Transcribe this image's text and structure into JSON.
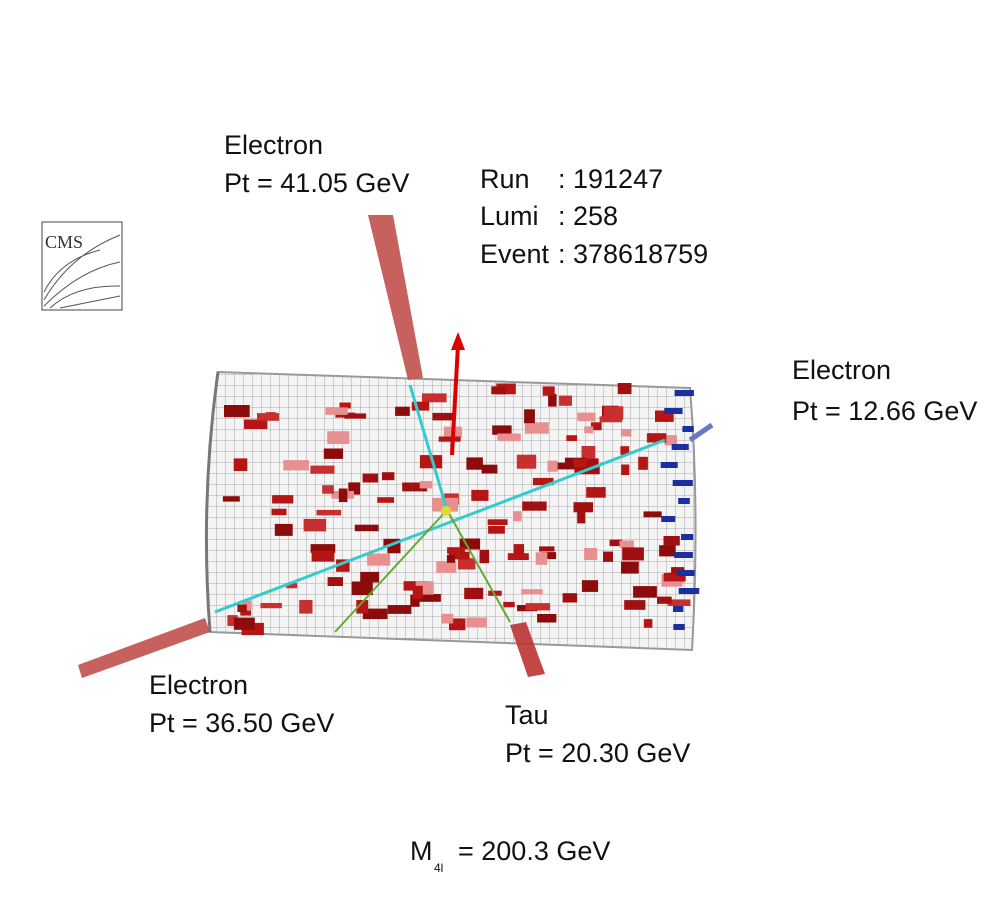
{
  "logo": "CMS",
  "particles": [
    {
      "name": "Electron",
      "pt": "Pt = 41.05 GeV"
    },
    {
      "name": "Electron",
      "pt": "Pt = 12.66 GeV"
    },
    {
      "name": "Electron",
      "pt": "Pt = 36.50 GeV"
    },
    {
      "name": "Tau",
      "pt": "Pt = 20.30 GeV"
    }
  ],
  "event_info": [
    {
      "key": "Run",
      "value": ": 191247"
    },
    {
      "key": "Lumi",
      "value": ": 258"
    },
    {
      "key": "Event",
      "value": ": 378618759"
    }
  ],
  "mass": {
    "symbol": "M",
    "subscript": "4l",
    "value": "= 200.3 GeV"
  }
}
